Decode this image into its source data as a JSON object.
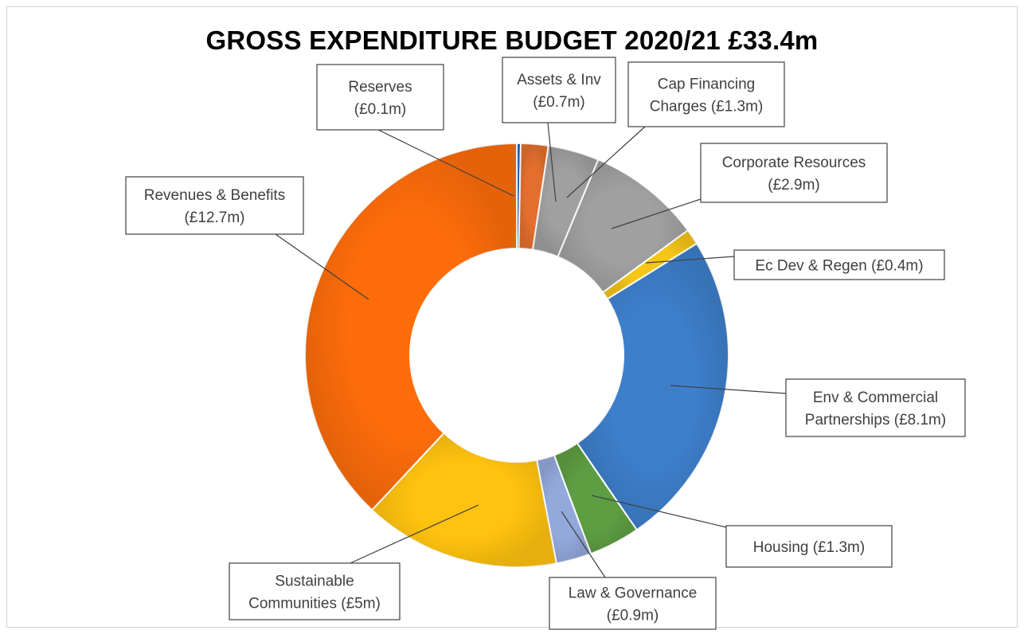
{
  "chart_data": {
    "type": "pie",
    "subtype": "doughnut",
    "title": "GROSS EXPENDITURE BUDGET 2020/21 £33.4m",
    "start_angle_deg": 0,
    "direction": "clockwise",
    "slices": [
      {
        "name": "Reserves",
        "value": 0.1,
        "color": "#2E5FB3",
        "label_lines": [
          "Reserves",
          "(£0.1m)"
        ]
      },
      {
        "name": "Assets & Inv",
        "value": 0.7,
        "color": "#E36F2E",
        "label_lines": [
          "Assets & Inv",
          "(£0.7m)"
        ]
      },
      {
        "name": "Cap Financing Charges",
        "value": 1.3,
        "color": "#A0A0A0",
        "label_lines": [
          "Cap Financing",
          "Charges (£1.3m)"
        ]
      },
      {
        "name": "Corporate Resources",
        "value": 2.9,
        "color": "#A0A0A0",
        "label_lines": [
          "Corporate Resources",
          "(£2.9m)"
        ]
      },
      {
        "name": "Ec Dev & Regen",
        "value": 0.4,
        "color": "#F5C518",
        "label_lines": [
          "Ec Dev & Regen (£0.4m)"
        ]
      },
      {
        "name": "Env & Commercial Partnerships",
        "value": 8.1,
        "color": "#3D7FCB",
        "label_lines": [
          "Env & Commercial",
          "Partnerships (£8.1m)"
        ]
      },
      {
        "name": "Housing",
        "value": 1.3,
        "color": "#5E9E43",
        "label_lines": [
          "Housing (£1.3m)"
        ]
      },
      {
        "name": "Law & Governance",
        "value": 0.9,
        "color": "#93A9DC",
        "label_lines": [
          "Law & Governance",
          "(£0.9m)"
        ]
      },
      {
        "name": "Sustainable Communities",
        "value": 5.0,
        "color": "#FFC20E",
        "label_lines": [
          "Sustainable",
          "Communities (£5m)"
        ]
      },
      {
        "name": "Revenues & Benefits",
        "value": 12.7,
        "color": "#FF6D0A",
        "label_lines": [
          "Revenues & Benefits",
          "(£12.7m)"
        ]
      }
    ]
  }
}
